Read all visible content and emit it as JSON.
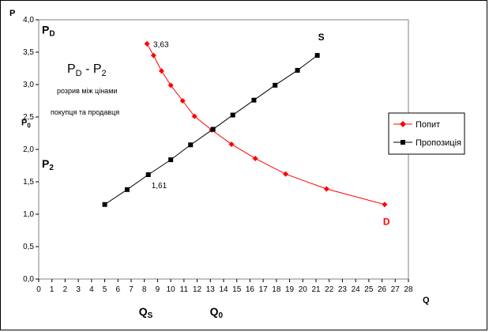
{
  "chart_data": {
    "type": "line",
    "xlabel": "Q",
    "ylabel": "P",
    "xlim": [
      0,
      28
    ],
    "ylim": [
      0,
      4
    ],
    "x_ticks": [
      "0",
      "1",
      "2",
      "3",
      "4",
      "5",
      "6",
      "7",
      "8",
      "9",
      "10",
      "11",
      "12",
      "13",
      "14",
      "15",
      "16",
      "17",
      "18",
      "19",
      "20",
      "21",
      "22",
      "23",
      "24",
      "25",
      "26",
      "27",
      "28"
    ],
    "y_ticks": [
      "0,0",
      "0,5",
      "1,0",
      "1,5",
      "2,0",
      "2,5",
      "3,0",
      "3,5",
      "4,0"
    ],
    "grid": false,
    "legend_position": "right",
    "series": [
      {
        "name": "Попит",
        "color": "#ff0000",
        "marker": "diamond",
        "x": [
          8.2,
          8.7,
          9.3,
          10.0,
          10.9,
          11.8,
          13.1,
          14.6,
          16.4,
          18.7,
          21.8,
          26.2
        ],
        "y": [
          3.63,
          3.45,
          3.21,
          2.99,
          2.75,
          2.51,
          2.3,
          2.08,
          1.86,
          1.62,
          1.39,
          1.15
        ]
      },
      {
        "name": "Пропозиція",
        "color": "#000000",
        "marker": "square",
        "x": [
          5.0,
          6.7,
          8.3,
          10.0,
          11.5,
          13.2,
          14.7,
          16.3,
          17.9,
          19.6,
          21.1
        ],
        "y": [
          1.15,
          1.38,
          1.61,
          1.84,
          2.07,
          2.31,
          2.53,
          2.76,
          2.99,
          3.22,
          3.45
        ]
      }
    ],
    "point_labels": [
      {
        "text": "3,63",
        "x": 8.2,
        "y": 3.63
      },
      {
        "text": "1,61",
        "x": 8.3,
        "y": 1.61
      }
    ],
    "curve_labels": {
      "supply": "S",
      "demand": "D"
    },
    "y_markers": {
      "pd": {
        "base": "P",
        "sub": "D",
        "value": 3.85
      },
      "p0": {
        "base": "P",
        "sub": "0",
        "value": 2.3
      },
      "p2": {
        "base": "P",
        "sub": "2",
        "value": 1.61
      }
    },
    "x_markers": {
      "qs": {
        "base": "Q",
        "sub": "S",
        "value": 8.3
      },
      "q0": {
        "base": "Q",
        "sub": "0",
        "value": 13.2
      }
    },
    "annotation": {
      "formula_base1": "P",
      "formula_sub1": "D",
      "formula_mid": " - P",
      "formula_sub2": "2",
      "line1": "розрив між цінами",
      "line2": "покупця та продавця"
    }
  }
}
